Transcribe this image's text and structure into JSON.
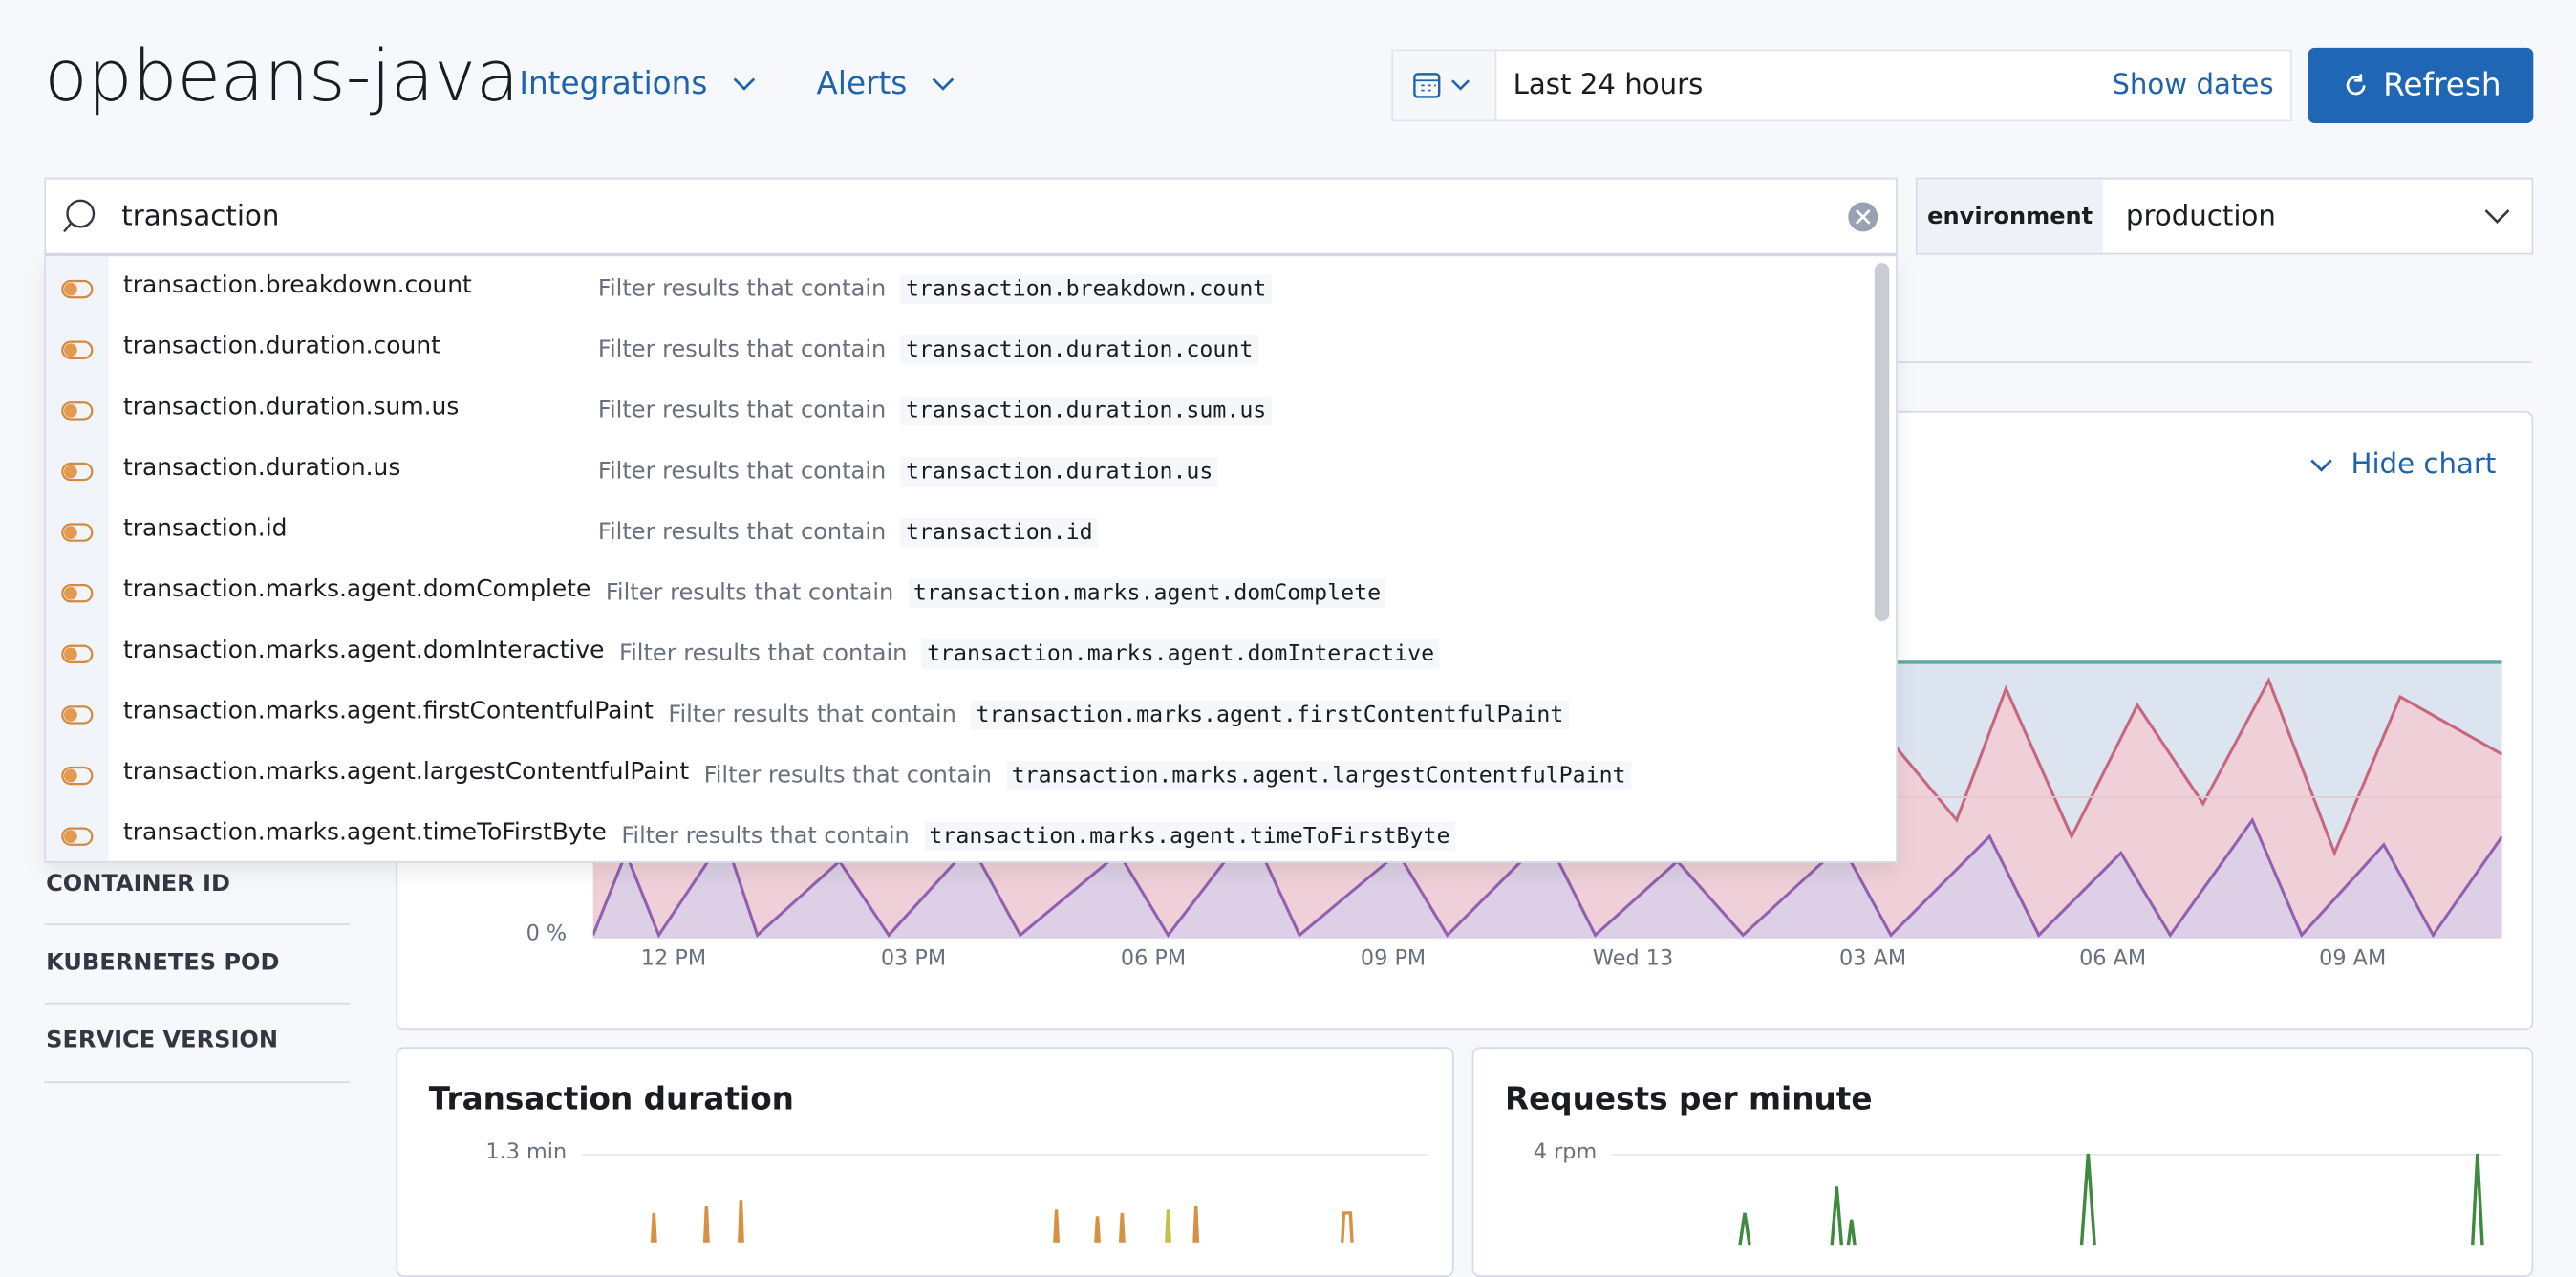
{
  "header": {
    "title": "opbeans-java",
    "nav": [
      "Integrations",
      "Alerts"
    ],
    "date_range": "Last 24 hours",
    "show_dates": "Show dates",
    "refresh": "Refresh"
  },
  "search": {
    "query": "transaction",
    "filter_label": "environment",
    "filter_value": "production"
  },
  "suggestions": [
    {
      "field": "transaction.breakdown.count",
      "description": "Filter results that contain"
    },
    {
      "field": "transaction.duration.count",
      "description": "Filter results that contain"
    },
    {
      "field": "transaction.duration.sum.us",
      "description": "Filter results that contain"
    },
    {
      "field": "transaction.duration.us",
      "description": "Filter results that contain"
    },
    {
      "field": "transaction.id",
      "description": "Filter results that contain"
    },
    {
      "field": "transaction.marks.agent.domComplete",
      "description": "Filter results that contain"
    },
    {
      "field": "transaction.marks.agent.domInteractive",
      "description": "Filter results that contain"
    },
    {
      "field": "transaction.marks.agent.firstContentfulPaint",
      "description": "Filter results that contain"
    },
    {
      "field": "transaction.marks.agent.largestContentfulPaint",
      "description": "Filter results that contain"
    },
    {
      "field": "transaction.marks.agent.timeToFirstByte",
      "description": "Filter results that contain"
    }
  ],
  "sidebar": [
    "CONTAINER ID",
    "KUBERNETES POD",
    "SERVICE VERSION"
  ],
  "main_chart": {
    "toggle": "Hide chart",
    "y_label": "0 %",
    "x_labels": [
      "12 PM",
      "03 PM",
      "06 PM",
      "09 PM",
      "Wed 13",
      "03 AM",
      "06 AM",
      "09 AM"
    ]
  },
  "panels": [
    {
      "title": "Transaction duration",
      "y_label": "1.3 min"
    },
    {
      "title": "Requests per minute",
      "y_label": "4 rpm"
    }
  ]
}
